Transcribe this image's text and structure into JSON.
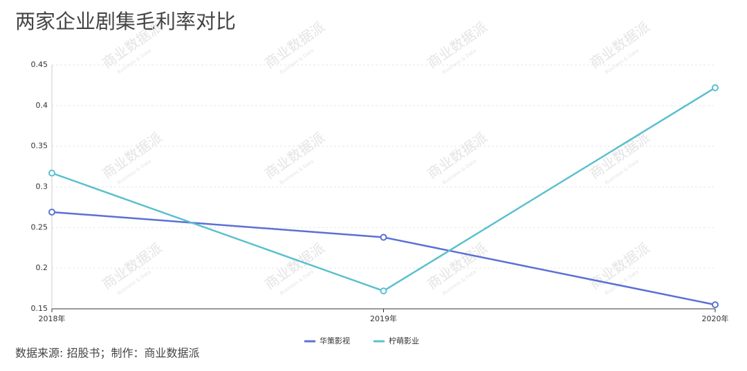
{
  "chart_data": {
    "type": "line",
    "title": "两家企业剧集毛利率对比",
    "source": "数据来源: 招股书；制作：商业数据派",
    "watermark": "商业数据派",
    "watermark_sub": "Business & Data",
    "categories": [
      "2018年",
      "2019年",
      "2020年"
    ],
    "series": [
      {
        "name": "华策影视",
        "color": "#5b6fd6",
        "values": [
          0.269,
          0.238,
          0.155
        ]
      },
      {
        "name": "柠萌影业",
        "color": "#5bc0ce",
        "values": [
          0.317,
          0.172,
          0.422
        ]
      }
    ],
    "ylim": [
      0.15,
      0.45
    ],
    "yticks": [
      0.15,
      0.2,
      0.25,
      0.3,
      0.35,
      0.4,
      0.45
    ],
    "grid": true
  }
}
